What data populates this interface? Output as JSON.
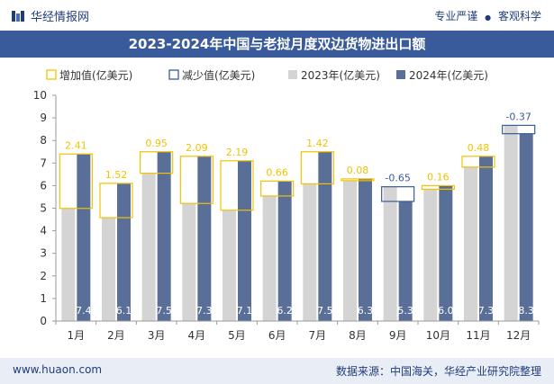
{
  "header": {
    "brand": "华经情报网",
    "slogan_left": "专业严谨",
    "slogan_sep": "●",
    "slogan_right": "客观科学"
  },
  "footer": {
    "website": "www.huaon.com",
    "source": "数据来源：中国海关，华经产业研究院整理"
  },
  "colors": {
    "title_bg": "#3a5b9b",
    "bar_2023": "#d4d4d4",
    "bar_2024": "#5a6f97",
    "increase": "#f2c200",
    "decrease": "#3a5b9b",
    "value_label": "#ffffff"
  },
  "chart_data": {
    "type": "bar",
    "title": "2023-2024年中国与老挝月度双边货物进出口额",
    "categories": [
      "1月",
      "2月",
      "3月",
      "4月",
      "5月",
      "6月",
      "7月",
      "8月",
      "9月",
      "10月",
      "11月",
      "12月"
    ],
    "series": [
      {
        "name": "2023年(亿美元)",
        "values": [
          4.99,
          4.58,
          6.55,
          5.21,
          4.91,
          5.54,
          6.08,
          6.22,
          5.95,
          5.84,
          6.82,
          8.67
        ]
      },
      {
        "name": "2024年(亿美元)",
        "values": [
          7.4,
          6.1,
          7.5,
          7.3,
          7.1,
          6.2,
          7.5,
          6.3,
          5.3,
          6.0,
          7.3,
          8.3
        ]
      }
    ],
    "value_labels_2024": [
      "7.4",
      "6.1",
      "7.5",
      "7.3",
      "7.1",
      "6.2",
      "7.5",
      "6.3",
      "5.3",
      "6.0",
      "7.3",
      "8.3"
    ],
    "changes": [
      2.41,
      1.52,
      0.95,
      2.09,
      2.19,
      0.66,
      1.42,
      0.08,
      -0.65,
      0.16,
      0.48,
      -0.37
    ],
    "change_labels": [
      "2.41",
      "1.52",
      "0.95",
      "2.09",
      "2.19",
      "0.66",
      "1.42",
      "0.08",
      "-0.65",
      "0.16",
      "0.48",
      "-0.37"
    ],
    "legend": [
      "增加值(亿美元)",
      "减少值(亿美元)",
      "2023年(亿美元)",
      "2024年(亿美元)"
    ],
    "yticks": [
      "0",
      "1",
      "2",
      "3",
      "4",
      "5",
      "6",
      "7",
      "8",
      "9",
      "10"
    ],
    "ylim": [
      0,
      10
    ],
    "legend_position": "top-left"
  }
}
